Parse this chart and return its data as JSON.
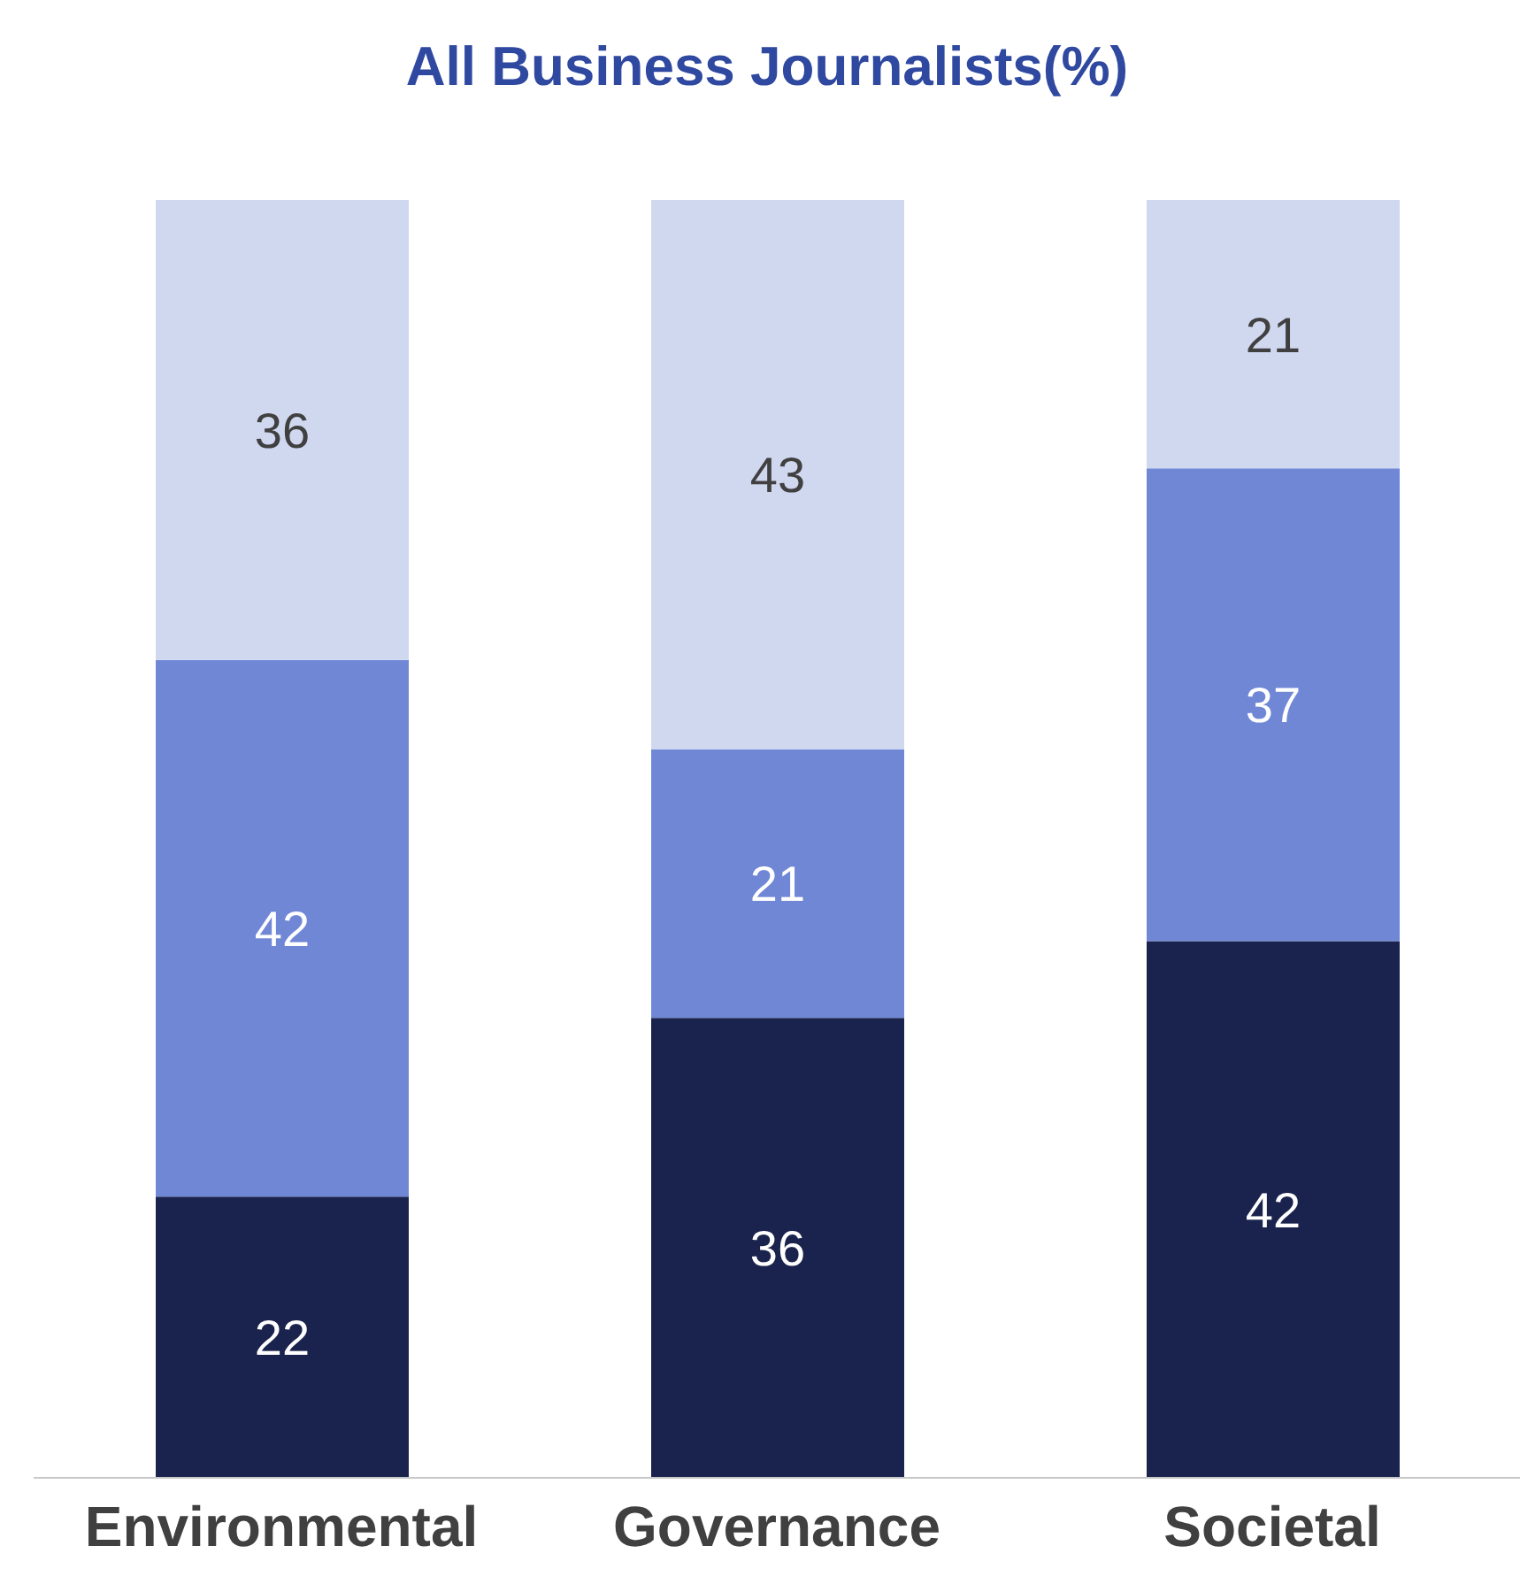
{
  "chart_data": {
    "type": "bar",
    "title": "All Business Journalists(%)",
    "categories": [
      "Environmental",
      "Governance",
      "Societal"
    ],
    "stacked": true,
    "data_labels": true,
    "grid": false,
    "legend": false,
    "series": [
      {
        "color": "#1a234d",
        "values": [
          22,
          36,
          42
        ]
      },
      {
        "color": "#7087d6",
        "values": [
          42,
          21,
          37
        ]
      },
      {
        "color": "#d0d8f0",
        "values": [
          36,
          43,
          21
        ]
      }
    ]
  }
}
